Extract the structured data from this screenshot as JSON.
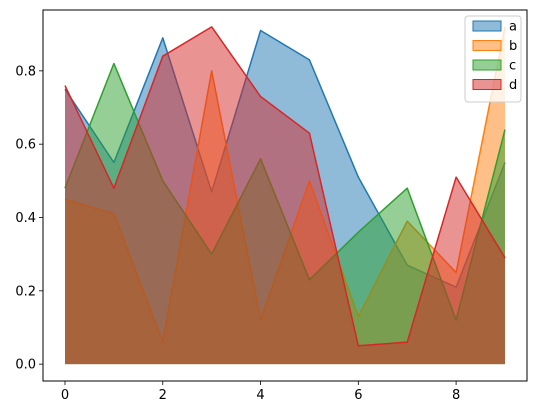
{
  "chart_data": {
    "type": "area",
    "stacked": false,
    "x": [
      0,
      1,
      2,
      3,
      4,
      5,
      6,
      7,
      8,
      9
    ],
    "series": [
      {
        "name": "a",
        "color": "#1f77b4",
        "values": [
          0.75,
          0.55,
          0.89,
          0.47,
          0.91,
          0.83,
          0.51,
          0.27,
          0.21,
          0.55
        ]
      },
      {
        "name": "b",
        "color": "#ff7f0e",
        "values": [
          0.45,
          0.41,
          0.06,
          0.8,
          0.12,
          0.5,
          0.13,
          0.39,
          0.25,
          0.92
        ]
      },
      {
        "name": "c",
        "color": "#2ca02c",
        "values": [
          0.48,
          0.82,
          0.5,
          0.3,
          0.56,
          0.23,
          0.36,
          0.48,
          0.12,
          0.64
        ]
      },
      {
        "name": "d",
        "color": "#d62728",
        "values": [
          0.76,
          0.48,
          0.84,
          0.92,
          0.73,
          0.63,
          0.05,
          0.06,
          0.51,
          0.29
        ]
      }
    ],
    "xlim": [
      -0.45,
      9.45
    ],
    "ylim": [
      -0.046,
      0.966
    ],
    "xticks": [
      0,
      2,
      4,
      6,
      8
    ],
    "yticks": [
      0.0,
      0.2,
      0.4,
      0.6,
      0.8
    ],
    "xtick_labels": [
      "0",
      "2",
      "4",
      "6",
      "8"
    ],
    "ytick_labels": [
      "0.0",
      "0.2",
      "0.4",
      "0.6",
      "0.8"
    ],
    "grid": false,
    "legend_position": "top-right"
  }
}
